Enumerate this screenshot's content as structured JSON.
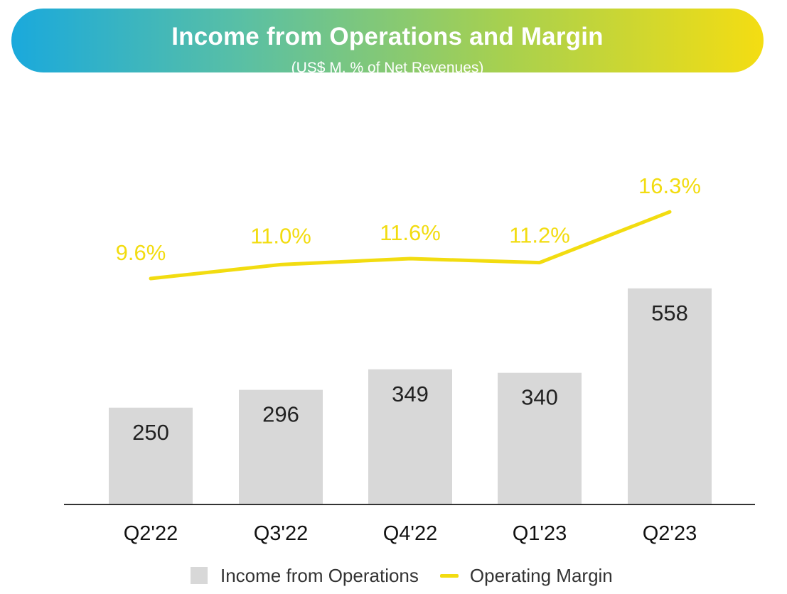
{
  "header": {
    "title": "Income from Operations and Margin",
    "subtitle": "(US$ M, % of Net Revenues)"
  },
  "colors": {
    "bar": "#d8d8d8",
    "margin_line": "#f2dc10",
    "banner_gradient": [
      "#1aa9dc",
      "#f4dd12"
    ]
  },
  "chart_data": {
    "type": "bar",
    "categories": [
      "Q2'22",
      "Q3'22",
      "Q4'22",
      "Q1'23",
      "Q2'23"
    ],
    "series": [
      {
        "name": "Income from Operations",
        "type": "bar",
        "values": [
          250,
          296,
          349,
          340,
          558
        ],
        "labels": [
          "250",
          "296",
          "349",
          "340",
          "558"
        ]
      },
      {
        "name": "Operating Margin",
        "type": "line",
        "values": [
          9.6,
          11.0,
          11.6,
          11.2,
          16.3
        ],
        "labels": [
          "9.6%",
          "11.0%",
          "11.6%",
          "11.2%",
          "16.3%"
        ]
      }
    ],
    "grid": false,
    "legend_position": "bottom"
  },
  "legend": {
    "items": [
      "Income from Operations",
      "Operating Margin"
    ]
  }
}
